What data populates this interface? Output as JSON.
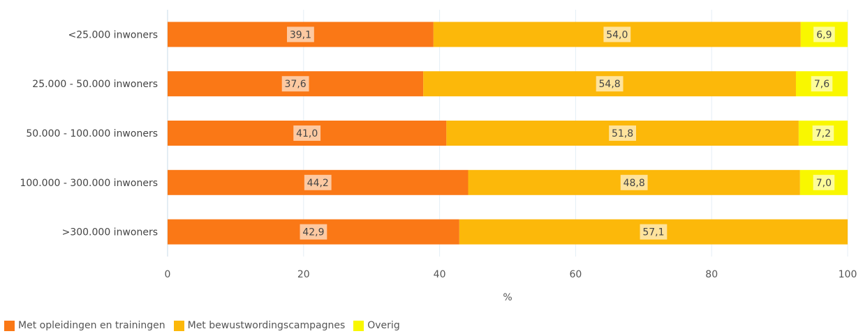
{
  "chart_data": {
    "type": "bar",
    "orientation": "horizontal",
    "stacked": true,
    "categories": [
      "<25.000 inwoners",
      "25.000 - 50.000 inwoners",
      "50.000 - 100.000 inwoners",
      "100.000 - 300.000 inwoners",
      ">300.000 inwoners"
    ],
    "series": [
      {
        "name": "Met opleidingen en trainingen",
        "color": "#fa7816",
        "values": [
          39.1,
          37.6,
          41.0,
          44.2,
          42.9
        ],
        "labels": [
          "39,1",
          "37,6",
          "41,0",
          "44,2",
          "42,9"
        ]
      },
      {
        "name": "Met bewustwordingscampagnes",
        "color": "#fcb80a",
        "values": [
          54.0,
          54.8,
          51.8,
          48.8,
          57.1
        ],
        "labels": [
          "54,0",
          "54,8",
          "51,8",
          "48,8",
          "57,1"
        ]
      },
      {
        "name": "Overig",
        "color": "#f9f700",
        "values": [
          6.9,
          7.6,
          7.2,
          7.0,
          null
        ],
        "labels": [
          "6,9",
          "7,6",
          "7,2",
          "7,0",
          ""
        ]
      }
    ],
    "xlabel": "%",
    "xlim": [
      0,
      100
    ],
    "xticks": [
      0,
      20,
      40,
      60,
      80,
      100
    ],
    "xtick_labels": [
      "0",
      "20",
      "40",
      "60",
      "80",
      "100"
    ],
    "grid": true,
    "legend_position": "bottom-left"
  }
}
